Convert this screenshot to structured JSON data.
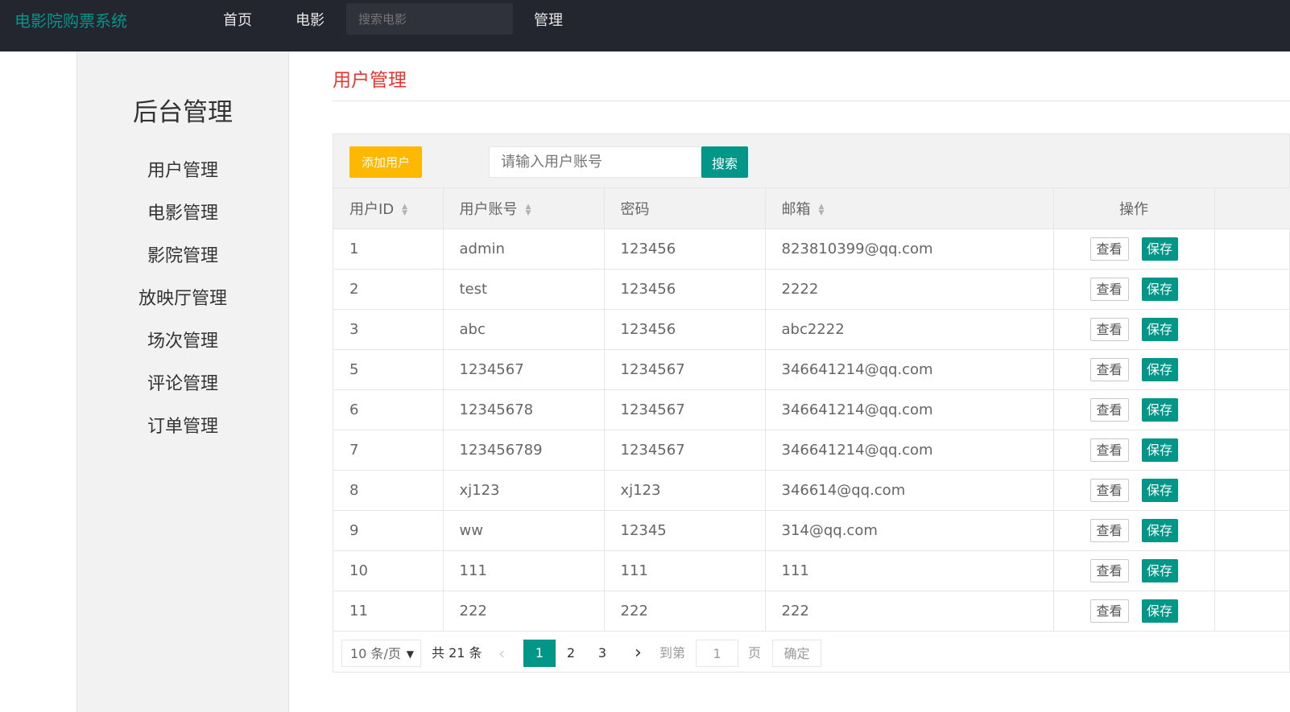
{
  "header": {
    "logo": "电影院购票系统",
    "nav": [
      "首页",
      "电影",
      "管理"
    ],
    "search_placeholder": "搜索电影"
  },
  "sidebar": {
    "title": "后台管理",
    "items": [
      "用户管理",
      "电影管理",
      "影院管理",
      "放映厅管理",
      "场次管理",
      "评论管理",
      "订单管理"
    ]
  },
  "page": {
    "title": "用户管理"
  },
  "toolbar": {
    "add_label": "添加用户",
    "search_placeholder": "请输入用户账号",
    "search_label": "搜索"
  },
  "table": {
    "columns": [
      "用户ID",
      "用户账号",
      "密码",
      "邮箱",
      "操作"
    ],
    "rows": [
      [
        "1",
        "admin",
        "123456",
        "823810399@qq.com"
      ],
      [
        "2",
        "test",
        "123456",
        "2222"
      ],
      [
        "3",
        "abc",
        "123456",
        "abc2222"
      ],
      [
        "5",
        "1234567",
        "1234567",
        "346641214@qq.com"
      ],
      [
        "6",
        "12345678",
        "1234567",
        "346641214@qq.com"
      ],
      [
        "7",
        "123456789",
        "1234567",
        "346641214@qq.com"
      ],
      [
        "8",
        "xj123",
        "xj123",
        "346614@qq.com"
      ],
      [
        "9",
        "ww",
        "12345",
        "314@qq.com"
      ],
      [
        "10",
        "111",
        "111",
        "111"
      ],
      [
        "11",
        "222",
        "222",
        "222"
      ]
    ],
    "view_label": "查看",
    "save_label": "保存"
  },
  "pagination": {
    "page_size": "10 条/页",
    "total": "共 21 条",
    "pages": [
      "1",
      "2",
      "3"
    ],
    "current": "1",
    "goto_label": "到第",
    "goto_value": "1",
    "page_unit": "页",
    "confirm_label": "确定"
  },
  "colors": {
    "header_bg": "#23262e",
    "accent": "#009688",
    "add_button": "#ffb800",
    "title": "#e8372f"
  }
}
